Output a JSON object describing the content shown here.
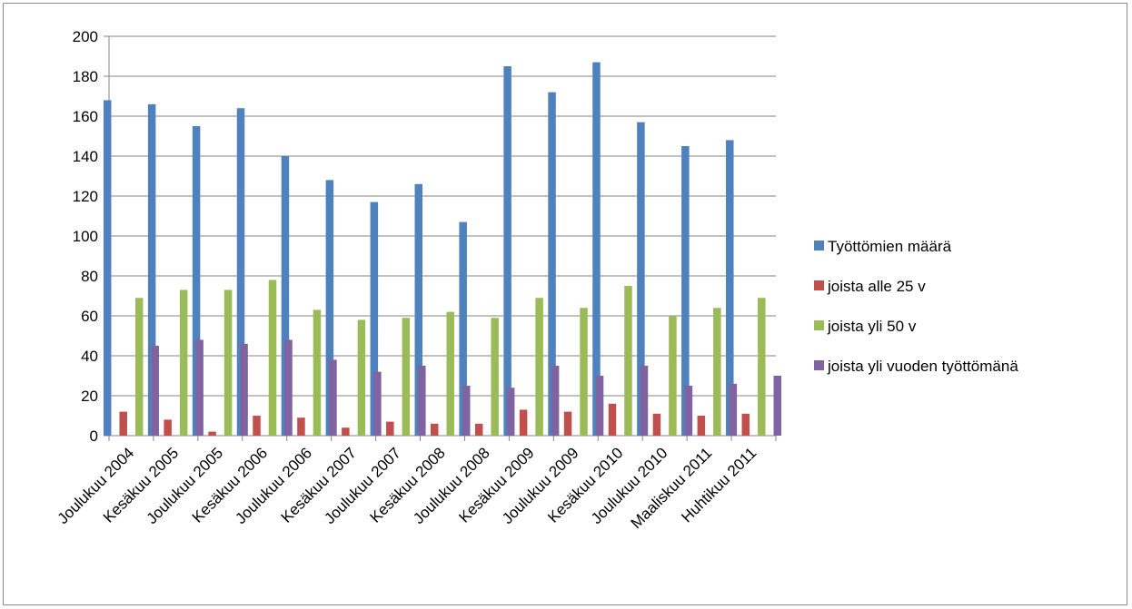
{
  "chart_data": {
    "type": "bar",
    "title": "",
    "xlabel": "",
    "ylabel": "",
    "ylim": [
      0,
      200
    ],
    "ytick_step": 20,
    "grid": true,
    "legend_position": "right",
    "categories": [
      "Joulukuu 2004",
      "Kesäkuu 2005",
      "Joulukuu 2005",
      "Kesäkuu 2006",
      "Joulukuu 2006",
      "Kesäkuu 2007",
      "Joulukuu 2007",
      "Kesäkuu 2008",
      "Joulukuu 2008",
      "Kesäkuu 2009",
      "Joulukuu 2009",
      "Kesäkuu 2010",
      "Joulukuu 2010",
      "Maaliskuu 2011",
      "Huhtikuu 2011"
    ],
    "series": [
      {
        "name": "Työttömien määrä",
        "color": "#4f81bd",
        "values": [
          168,
          166,
          155,
          164,
          140,
          128,
          117,
          126,
          107,
          185,
          172,
          187,
          157,
          145,
          148
        ]
      },
      {
        "name": "joista alle 25 v",
        "color": "#c0504d",
        "values": [
          12,
          8,
          2,
          10,
          9,
          4,
          7,
          6,
          6,
          13,
          12,
          16,
          11,
          10,
          11
        ]
      },
      {
        "name": "joista yli 50 v",
        "color": "#9bbb59",
        "values": [
          69,
          73,
          73,
          78,
          63,
          58,
          59,
          62,
          59,
          69,
          64,
          75,
          60,
          64,
          69
        ]
      },
      {
        "name": "joista yli vuoden työttömänä",
        "color": "#8064a2",
        "values": [
          45,
          48,
          46,
          48,
          38,
          32,
          35,
          25,
          24,
          35,
          30,
          35,
          25,
          26,
          30
        ]
      }
    ]
  }
}
